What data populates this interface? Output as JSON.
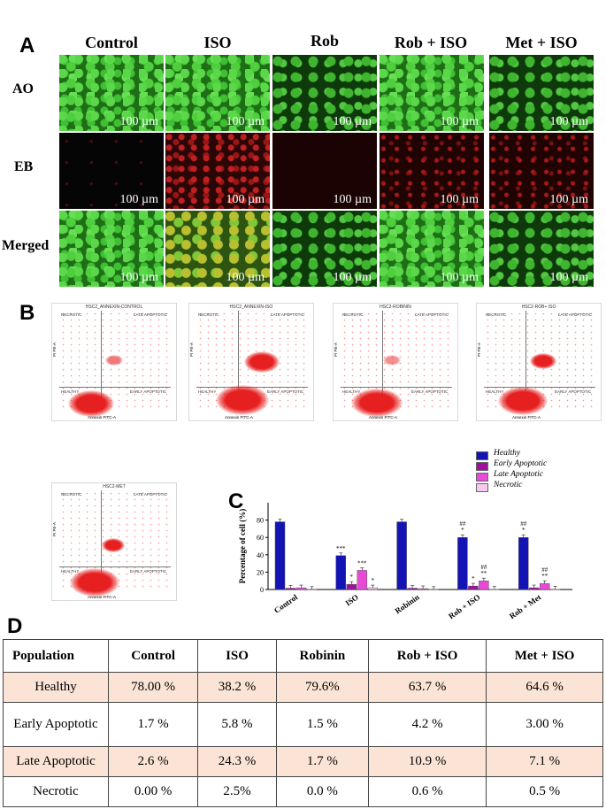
{
  "panels": {
    "a": "A",
    "b": "B",
    "c": "C",
    "d": "D"
  },
  "panel_a": {
    "columns": [
      "Control",
      "ISO",
      "Rob",
      "Rob + ISO",
      "Met + ISO"
    ],
    "rows": [
      "AO",
      "EB",
      "Merged"
    ],
    "scale_bar": "100 µm"
  },
  "panel_b": {
    "plots": [
      {
        "title": "HSC2_ANNEXIN-CONTROL"
      },
      {
        "title": "HSC2_ANNEXIN-ISO"
      },
      {
        "title": "HSC2-ROBININ"
      },
      {
        "title": "HSC2-ROB+ ISO"
      },
      {
        "title": "HSC2-MET"
      }
    ],
    "quadrants": {
      "tl": "NECROTIC",
      "tr": "LATE APOPTOTIC",
      "bl": "HEALTHY",
      "br": "EARLY APOPTOTIC"
    },
    "xaxis": "Annexin FITC-A",
    "yaxis": "PI PE-A"
  },
  "chart_data": {
    "type": "bar",
    "ylabel": "Percentage of cell (%)",
    "ylim": [
      0,
      100
    ],
    "yticks": [
      0,
      20,
      40,
      60,
      80
    ],
    "categories": [
      "Control",
      "ISO",
      "Robinin",
      "Rob + ISO",
      "Rob + Met"
    ],
    "series": [
      {
        "name": "Healthy",
        "color": "#1414b4",
        "values": [
          78,
          39,
          78,
          60,
          60
        ]
      },
      {
        "name": "Early Apoptotic",
        "color": "#a010a0",
        "values": [
          1.5,
          6,
          1.5,
          4,
          2
        ]
      },
      {
        "name": "Late Apoptotic",
        "color": "#e84ad8",
        "values": [
          2,
          22,
          1,
          10,
          7
        ]
      },
      {
        "name": "Necrotic",
        "color": "#f8c8ee",
        "values": [
          0.2,
          2,
          0.2,
          0.5,
          0.5
        ]
      }
    ],
    "annotations": [
      {
        "category": 1,
        "series": 0,
        "text": "***"
      },
      {
        "category": 1,
        "series": 1,
        "text": "*"
      },
      {
        "category": 1,
        "series": 2,
        "text": "***"
      },
      {
        "category": 1,
        "series": 3,
        "text": "*"
      },
      {
        "category": 3,
        "series": 0,
        "text": "##\n*"
      },
      {
        "category": 3,
        "series": 1,
        "text": "*"
      },
      {
        "category": 3,
        "series": 2,
        "text": "##\n**"
      },
      {
        "category": 4,
        "series": 0,
        "text": "##\n*"
      },
      {
        "category": 4,
        "series": 2,
        "text": "##\n**"
      }
    ],
    "legend_position": "top-right"
  },
  "table": {
    "headers": [
      "Population",
      "Control",
      "ISO",
      "Robinin",
      "Rob + ISO",
      "Met + ISO"
    ],
    "rows": [
      [
        "Healthy",
        "78.00 %",
        "38.2 %",
        "79.6%",
        "63.7 %",
        "64.6 %"
      ],
      [
        "Early Apoptotic",
        "1.7 %",
        "5.8 %",
        "1.5 %",
        "4.2 %",
        "3.00 %"
      ],
      [
        "Late Apoptotic",
        "2.6 %",
        "24.3 %",
        "1.7 %",
        "10.9 %",
        "7.1 %"
      ],
      [
        "Necrotic",
        "0.00 %",
        "2.5%",
        "0.0 %",
        "0.6 %",
        "0.5 %"
      ]
    ]
  }
}
